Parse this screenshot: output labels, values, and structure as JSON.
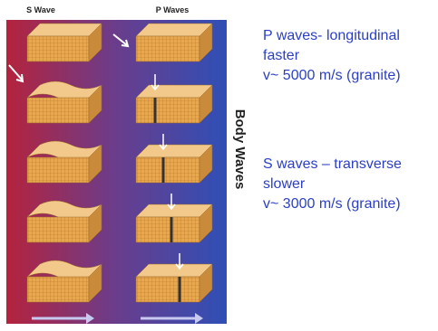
{
  "figure": {
    "headers": [
      "S Wave",
      "P Waves"
    ],
    "side_label": "Body Waves"
  },
  "notes": [
    {
      "lines": [
        "P waves- longitudinal",
        "faster",
        "v~ 5000 m/s (granite)"
      ]
    },
    {
      "lines": [
        "S waves – transverse",
        "slower",
        "v~ 3000 m/s (granite)"
      ]
    }
  ]
}
